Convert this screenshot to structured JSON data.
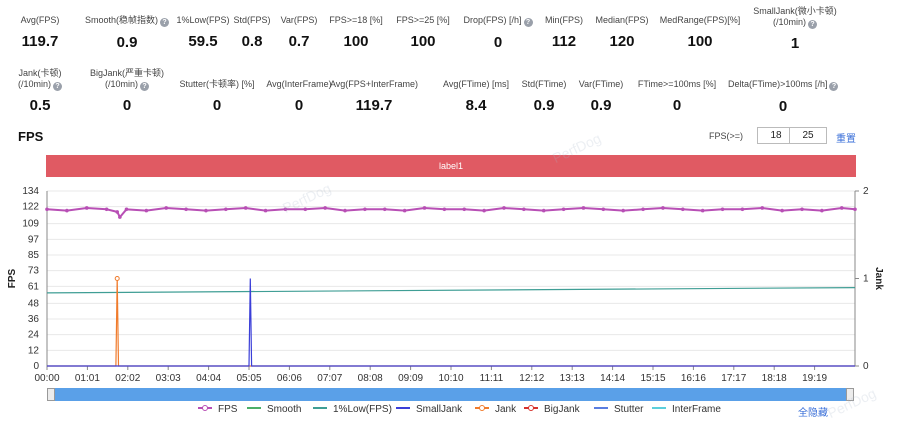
{
  "metrics": [
    {
      "label": "Avg(FPS)",
      "value": "119.7",
      "help": false
    },
    {
      "label": "Smooth(稳帧指数)",
      "value": "0.9",
      "help": true
    },
    {
      "label": "1%Low(FPS)",
      "value": "59.5",
      "help": false
    },
    {
      "label": "Std(FPS)",
      "value": "0.8",
      "help": false
    },
    {
      "label": "Var(FPS)",
      "value": "0.7",
      "help": false
    },
    {
      "label": "FPS>=18 [%]",
      "value": "100",
      "help": false
    },
    {
      "label": "FPS>=25 [%]",
      "value": "100",
      "help": false
    },
    {
      "label": "Drop(FPS) [/h]",
      "value": "0",
      "help": true
    },
    {
      "label": "Min(FPS)",
      "value": "112",
      "help": false
    },
    {
      "label": "Median(FPS)",
      "value": "120",
      "help": false
    },
    {
      "label": "MedRange(FPS)[%]",
      "value": "100",
      "help": false
    },
    {
      "label": "SmallJank(微小卡顿)\n(/10min)",
      "value": "1",
      "help": true
    },
    {
      "label": "Jank(卡顿)\n(/10min)",
      "value": "0.5",
      "help": true
    },
    {
      "label": "BigJank(严重卡顿)\n(/10min)",
      "value": "0",
      "help": true
    },
    {
      "label": "Stutter(卡顿率) [%]",
      "value": "0",
      "help": false
    },
    {
      "label": "Avg(InterFrame)",
      "value": "0",
      "help": false
    },
    {
      "label": "Avg(FPS+InterFrame)",
      "value": "119.7",
      "help": false
    },
    {
      "label": "Avg(FTime) [ms]",
      "value": "8.4",
      "help": false
    },
    {
      "label": "Std(FTime)",
      "value": "0.9",
      "help": false
    },
    {
      "label": "Var(FTime)",
      "value": "0.9",
      "help": false
    },
    {
      "label": "FTime>=100ms [%]",
      "value": "0",
      "help": false
    },
    {
      "label": "Delta(FTime)>100ms [/h]",
      "value": "0",
      "help": true
    }
  ],
  "section_title": "FPS",
  "threshold": {
    "label": "FPS(>=)",
    "value1": "18",
    "value2": "25",
    "reset_label": "重置"
  },
  "label_bar": "label1",
  "watermark": "PerfDog",
  "legend": {
    "hide_all_label": "全隐藏",
    "items": [
      {
        "name": "FPS",
        "color": "#b84fb5",
        "marker": true
      },
      {
        "name": "Smooth",
        "color": "#4caf68",
        "marker": false
      },
      {
        "name": "1%Low(FPS)",
        "color": "#3f9e95",
        "marker": false
      },
      {
        "name": "SmallJank",
        "color": "#3b3fd8",
        "marker": false
      },
      {
        "name": "Jank",
        "color": "#f07b2c",
        "marker": true
      },
      {
        "name": "BigJank",
        "color": "#d6332d",
        "marker": true
      },
      {
        "name": "Stutter",
        "color": "#5a7ee0",
        "marker": false
      },
      {
        "name": "InterFrame",
        "color": "#5ccfdc",
        "marker": false
      }
    ]
  },
  "chart_data": {
    "type": "line",
    "ylabel": "FPS",
    "y2label": "Jank",
    "ylim": [
      0,
      134
    ],
    "y2lim": [
      0,
      2
    ],
    "yticks": [
      0,
      12,
      24,
      36,
      48,
      61,
      73,
      85,
      97,
      109,
      122,
      134
    ],
    "y2ticks": [
      0,
      1,
      2
    ],
    "xlim_seconds": [
      0,
      1220
    ],
    "xticks": [
      "00:00",
      "01:01",
      "02:02",
      "03:03",
      "04:04",
      "05:05",
      "06:06",
      "07:07",
      "08:08",
      "09:09",
      "10:10",
      "11:11",
      "12:12",
      "13:13",
      "14:14",
      "15:15",
      "16:16",
      "17:17",
      "18:18",
      "19:19"
    ],
    "series": [
      {
        "name": "FPS",
        "axis": "left",
        "x": [
          0,
          30,
          60,
          90,
          106,
          110,
          120,
          150,
          180,
          210,
          240,
          270,
          300,
          330,
          360,
          390,
          420,
          450,
          480,
          510,
          540,
          570,
          600,
          630,
          660,
          690,
          720,
          750,
          780,
          810,
          840,
          870,
          900,
          930,
          960,
          990,
          1020,
          1050,
          1080,
          1110,
          1140,
          1170,
          1200,
          1220
        ],
        "values": [
          120,
          119,
          121,
          120,
          118,
          114,
          120,
          119,
          121,
          120,
          119,
          120,
          121,
          119,
          120,
          120,
          121,
          119,
          120,
          120,
          119,
          121,
          120,
          120,
          119,
          121,
          120,
          119,
          120,
          121,
          120,
          119,
          120,
          121,
          120,
          119,
          120,
          120,
          121,
          119,
          120,
          119,
          121,
          120
        ]
      },
      {
        "name": "1%Low(FPS)",
        "axis": "left",
        "x": [
          0,
          1220
        ],
        "values": [
          56,
          60
        ]
      },
      {
        "name": "Jank",
        "axis": "right",
        "x": [
          0,
          104,
          106,
          108,
          1220
        ],
        "values": [
          0,
          0,
          1,
          0,
          0
        ]
      },
      {
        "name": "SmallJank",
        "axis": "right",
        "x": [
          0,
          305,
          307,
          309,
          1220
        ],
        "values": [
          0,
          0,
          1,
          0,
          0
        ]
      }
    ]
  }
}
